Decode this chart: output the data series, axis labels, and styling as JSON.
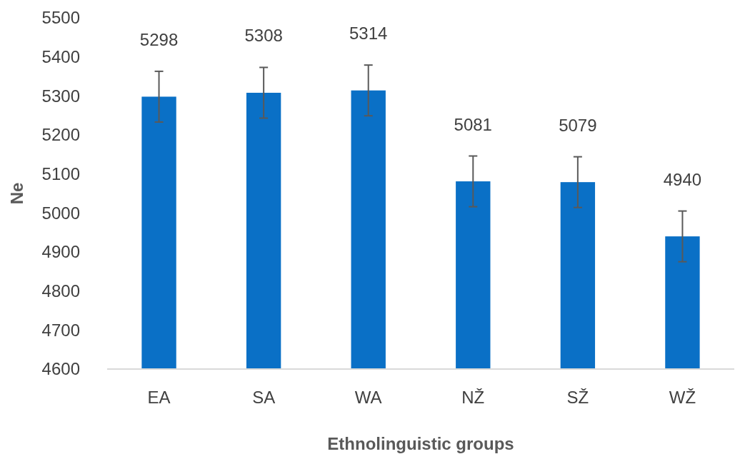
{
  "chart_data": {
    "type": "bar",
    "xlabel": "Ethnolinguistic groups",
    "ylabel": "Ne",
    "categories": [
      "EA",
      "SA",
      "WA",
      "NŽ",
      "SŽ",
      "WŽ"
    ],
    "values": [
      5298,
      5308,
      5314,
      5081,
      5079,
      4940
    ],
    "errors": [
      65,
      65,
      65,
      65,
      65,
      65
    ],
    "color": "#0a70c6",
    "ylim": [
      4600,
      5500
    ],
    "yticks": [
      4600,
      4700,
      4800,
      4900,
      5000,
      5100,
      5200,
      5300,
      5400,
      5500
    ],
    "grid": false,
    "data_labels": true
  }
}
